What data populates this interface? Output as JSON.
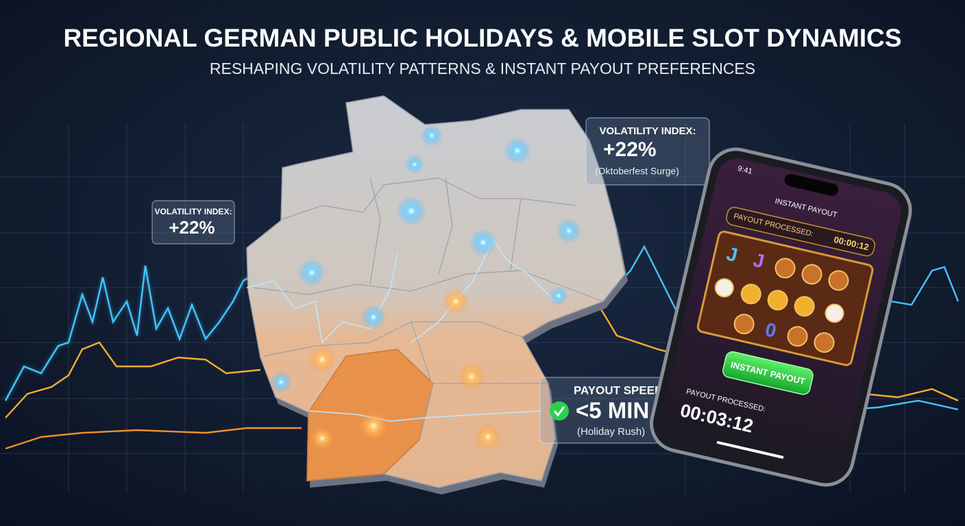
{
  "header": {
    "title": "REGIONAL GERMAN PUBLIC HOLIDAYS & MOBILE SLOT DYNAMICS",
    "subtitle": "RESHAPING VOLATILITY PATTERNS & INSTANT PAYOUT PREFERENCES"
  },
  "callouts": [
    {
      "label": "VOLATILITY INDEX:",
      "value": "+22%"
    },
    {
      "label": "VOLATILITY INDEX:",
      "value": "+22%",
      "note": "(Oktoberfest Surge)"
    },
    {
      "label": "PAYOUT SPEED:",
      "value": "<5 MIN",
      "note": "(Holiday Rush)"
    }
  ],
  "phone": {
    "time": "9:41",
    "screen_title": "INSTANT PAYOUT",
    "status_label": "PAYOUT PROCESSED:",
    "status_timer": "00:00:12",
    "reel_symbols": [
      "J",
      "J",
      "0"
    ],
    "button": "INSTANT PAYOUT",
    "footer_label": "PAYOUT PROCESSED:",
    "footer_timer": "00:03:12"
  }
}
